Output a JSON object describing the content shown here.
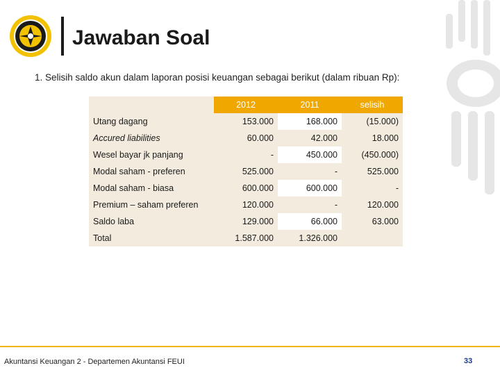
{
  "header": {
    "title": "Jawaban Soal"
  },
  "question": {
    "number": "1.",
    "text": "Selisih saldo akun dalam laporan posisi keuangan sebagai berikut (dalam ribuan Rp):"
  },
  "table": {
    "columns": [
      "2012",
      "2011",
      "selisih"
    ],
    "rows": [
      {
        "label": "Utang dagang",
        "italic": false,
        "v2012": "153.000",
        "v2011": "168.000",
        "selisih": "(15.000)"
      },
      {
        "label": "Accured liabilities",
        "italic": true,
        "v2012": "60.000",
        "v2011": "42.000",
        "selisih": "18.000"
      },
      {
        "label": "Wesel bayar jk panjang",
        "italic": false,
        "v2012": "-",
        "v2011": "450.000",
        "selisih": "(450.000)"
      },
      {
        "label": "Modal saham - preferen",
        "italic": false,
        "v2012": "525.000",
        "v2011": "-",
        "selisih": "525.000"
      },
      {
        "label": "Modal saham - biasa",
        "italic": false,
        "v2012": "600.000",
        "v2011": "600.000",
        "selisih": "-"
      },
      {
        "label": "Premium – saham preferen",
        "italic": false,
        "v2012": "120.000",
        "v2011": "-",
        "selisih": "120.000"
      },
      {
        "label": "Saldo laba",
        "italic": false,
        "v2012": "129.000",
        "v2011": "66.000",
        "selisih": "63.000"
      },
      {
        "label": "Total",
        "italic": false,
        "v2012": "1.587.000",
        "v2011": "1.326.000",
        "selisih": ""
      }
    ]
  },
  "footer": {
    "text": "Akuntansi Keuangan 2 - Departemen Akuntansi FEUI",
    "page": "33"
  },
  "colors": {
    "accent": "#f0a800",
    "table_bg": "#f3ecde",
    "page_number": "#1b3a8a"
  },
  "icons": {
    "logo": "university-seal-icon",
    "decoration": "makara-watermark-icon"
  }
}
